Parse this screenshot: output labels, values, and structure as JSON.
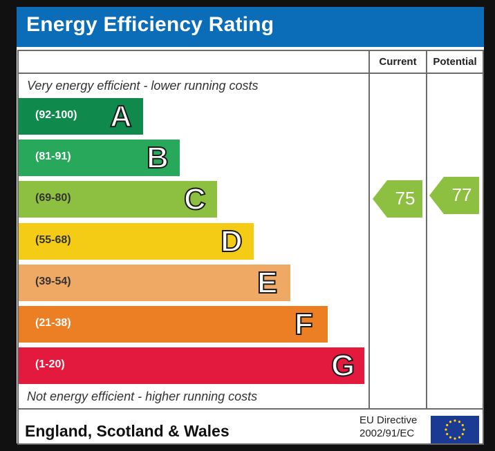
{
  "header": {
    "title": "Energy Efficiency Rating"
  },
  "columns": {
    "current": "Current",
    "potential": "Potential"
  },
  "notes": {
    "top": "Very energy efficient - lower running costs",
    "bottom": "Not energy efficient - higher running costs"
  },
  "footer": {
    "region": "England, Scotland & Wales",
    "directive_line1": "EU Directive",
    "directive_line2": "2002/91/EC"
  },
  "colors": {
    "title_bar": "#0b6cb8",
    "A": "#0f8a4c",
    "B": "#27a85b",
    "C": "#8dc040",
    "D": "#f4cc15",
    "E": "#f0a965",
    "F": "#ec7e23",
    "G": "#e3193d",
    "current_arrow": "#8dc040",
    "potential_arrow": "#8dc040"
  },
  "chart_data": {
    "type": "bar",
    "title": "Energy Efficiency Rating",
    "categories": [
      "A",
      "B",
      "C",
      "D",
      "E",
      "F",
      "G"
    ],
    "bands": [
      {
        "letter": "A",
        "range": "(92-100)",
        "min": 92,
        "max": 100
      },
      {
        "letter": "B",
        "range": "(81-91)",
        "min": 81,
        "max": 91
      },
      {
        "letter": "C",
        "range": "(69-80)",
        "min": 69,
        "max": 80
      },
      {
        "letter": "D",
        "range": "(55-68)",
        "min": 55,
        "max": 68
      },
      {
        "letter": "E",
        "range": "(39-54)",
        "min": 39,
        "max": 54
      },
      {
        "letter": "F",
        "range": "(21-38)",
        "min": 21,
        "max": 38
      },
      {
        "letter": "G",
        "range": "(1-20)",
        "min": 1,
        "max": 20
      }
    ],
    "ratings": {
      "current": 75,
      "potential": 77
    }
  }
}
